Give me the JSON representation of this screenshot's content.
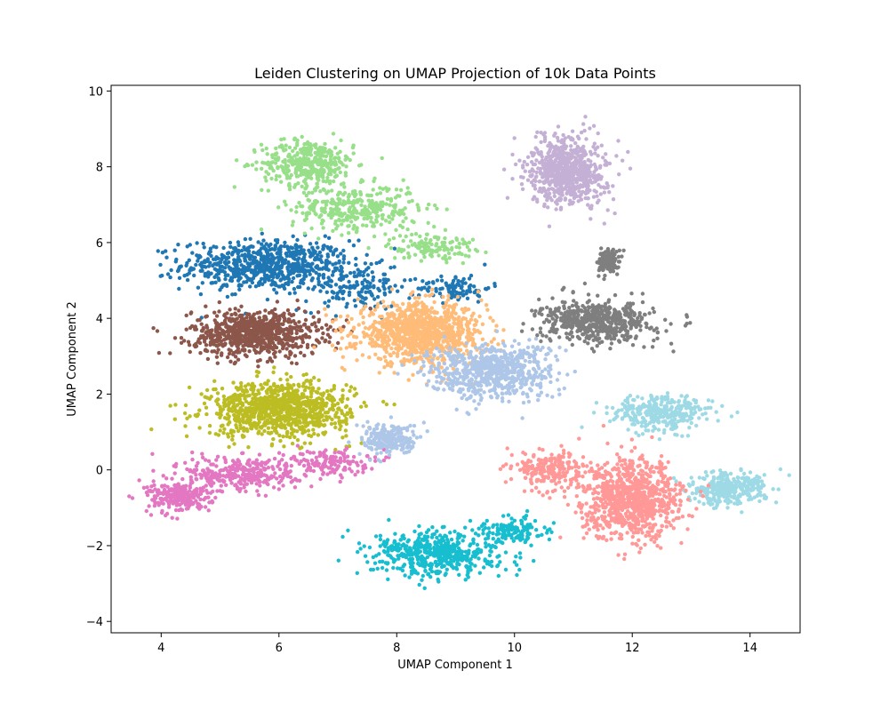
{
  "chart_data": {
    "type": "scatter",
    "title": "Leiden Clustering on UMAP Projection of 10k Data Points",
    "xlabel": "UMAP Component 1",
    "ylabel": "UMAP Component 2",
    "xlim": [
      3.15,
      14.85
    ],
    "ylim": [
      -4.3,
      10.15
    ],
    "xticks": [
      4,
      6,
      8,
      10,
      12,
      14
    ],
    "yticks": [
      -4,
      -2,
      0,
      2,
      4,
      6,
      8,
      10
    ],
    "xtick_labels": [
      "4",
      "6",
      "8",
      "10",
      "12",
      "14"
    ],
    "ytick_labels": [
      "−4",
      "−2",
      "0",
      "2",
      "4",
      "6",
      "8",
      "10"
    ],
    "grid": false,
    "legend": "none",
    "marker_size": 2.2,
    "clusters": [
      {
        "color": "#1f77b4",
        "approx_n": 950,
        "regions": [
          {
            "center": [
              5.8,
              5.4
            ],
            "spread": [
              1.2,
              0.55
            ],
            "weight": 0.75
          },
          {
            "center": [
              7.3,
              4.8
            ],
            "spread": [
              0.8,
              0.5
            ],
            "weight": 0.15
          },
          {
            "center": [
              9.0,
              4.8
            ],
            "spread": [
              0.5,
              0.3
            ],
            "weight": 0.1
          }
        ]
      },
      {
        "color": "#98df8a",
        "approx_n": 850,
        "regions": [
          {
            "center": [
              6.5,
              8.1
            ],
            "spread": [
              0.65,
              0.5
            ],
            "weight": 0.45
          },
          {
            "center": [
              7.3,
              6.9
            ],
            "spread": [
              0.9,
              0.5
            ],
            "weight": 0.4
          },
          {
            "center": [
              8.6,
              5.9
            ],
            "spread": [
              0.6,
              0.3
            ],
            "weight": 0.15
          }
        ]
      },
      {
        "color": "#8c564b",
        "approx_n": 800,
        "regions": [
          {
            "center": [
              5.6,
              3.6
            ],
            "spread": [
              0.9,
              0.5
            ],
            "weight": 1.0
          }
        ]
      },
      {
        "color": "#ffbb78",
        "approx_n": 1000,
        "regions": [
          {
            "center": [
              8.4,
              3.6
            ],
            "spread": [
              0.9,
              0.65
            ],
            "weight": 1.0
          }
        ]
      },
      {
        "color": "#bcbd22",
        "approx_n": 950,
        "regions": [
          {
            "center": [
              6.0,
              1.6
            ],
            "spread": [
              1.0,
              0.6
            ],
            "weight": 1.0
          }
        ]
      },
      {
        "color": "#e377c2",
        "approx_n": 700,
        "regions": [
          {
            "center": [
              4.3,
              -0.7
            ],
            "spread": [
              0.45,
              0.35
            ],
            "weight": 0.35
          },
          {
            "center": [
              5.4,
              -0.1
            ],
            "spread": [
              0.8,
              0.4
            ],
            "weight": 0.45
          },
          {
            "center": [
              6.8,
              0.2
            ],
            "spread": [
              0.6,
              0.3
            ],
            "weight": 0.2
          }
        ]
      },
      {
        "color": "#aec7e8",
        "approx_n": 900,
        "regions": [
          {
            "center": [
              9.6,
              2.6
            ],
            "spread": [
              0.9,
              0.6
            ],
            "weight": 0.75
          },
          {
            "center": [
              7.9,
              0.8
            ],
            "spread": [
              0.4,
              0.35
            ],
            "weight": 0.25
          }
        ]
      },
      {
        "color": "#7f7f7f",
        "approx_n": 700,
        "regions": [
          {
            "center": [
              11.4,
              3.9
            ],
            "spread": [
              0.8,
              0.45
            ],
            "weight": 0.8
          },
          {
            "center": [
              11.6,
              5.5
            ],
            "spread": [
              0.15,
              0.25
            ],
            "weight": 0.2
          }
        ]
      },
      {
        "color": "#c5b0d5",
        "approx_n": 700,
        "regions": [
          {
            "center": [
              10.9,
              7.9
            ],
            "spread": [
              0.55,
              0.75
            ],
            "weight": 1.0
          }
        ]
      },
      {
        "color": "#9edae5",
        "approx_n": 650,
        "regions": [
          {
            "center": [
              12.5,
              1.5
            ],
            "spread": [
              0.7,
              0.4
            ],
            "weight": 0.5
          },
          {
            "center": [
              13.6,
              -0.5
            ],
            "spread": [
              0.55,
              0.35
            ],
            "weight": 0.5
          }
        ]
      },
      {
        "color": "#ff9896",
        "approx_n": 1100,
        "regions": [
          {
            "center": [
              12.0,
              -0.8
            ],
            "spread": [
              0.7,
              0.85
            ],
            "weight": 0.8
          },
          {
            "center": [
              10.6,
              0.0
            ],
            "spread": [
              0.5,
              0.4
            ],
            "weight": 0.2
          }
        ]
      },
      {
        "color": "#17becf",
        "approx_n": 650,
        "regions": [
          {
            "center": [
              8.7,
              -2.2
            ],
            "spread": [
              0.9,
              0.5
            ],
            "weight": 0.8
          },
          {
            "center": [
              10.0,
              -1.6
            ],
            "spread": [
              0.4,
              0.3
            ],
            "weight": 0.2
          }
        ]
      }
    ]
  }
}
